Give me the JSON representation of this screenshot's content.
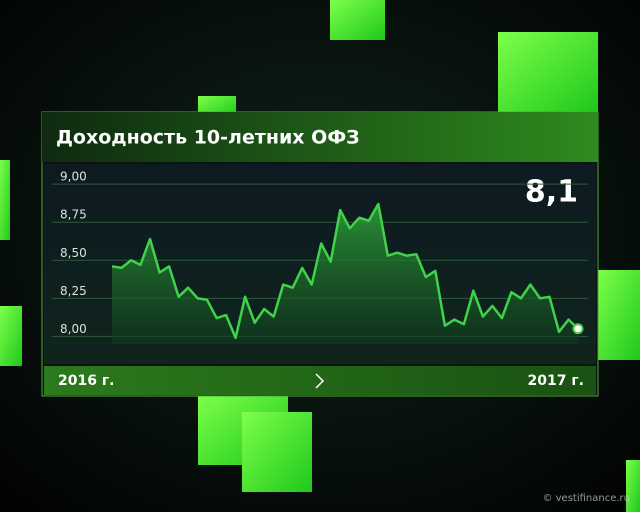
{
  "chart_data": {
    "type": "area",
    "title": "Доходность 10-летних ОФЗ",
    "current_value_label": "8,1",
    "x_labels": [
      "2016 г.",
      "2017 г."
    ],
    "values": [
      8.46,
      8.45,
      8.5,
      8.47,
      8.64,
      8.42,
      8.46,
      8.26,
      8.32,
      8.25,
      8.24,
      8.12,
      8.14,
      7.99,
      8.26,
      8.09,
      8.18,
      8.13,
      8.34,
      8.32,
      8.45,
      8.34,
      8.61,
      8.49,
      8.83,
      8.71,
      8.78,
      8.76,
      8.87,
      8.53,
      8.55,
      8.53,
      8.54,
      8.39,
      8.43,
      8.07,
      8.11,
      8.08,
      8.3,
      8.13,
      8.2,
      8.12,
      8.29,
      8.25,
      8.34,
      8.25,
      8.26,
      8.03,
      8.11,
      8.05
    ],
    "color": "#3fd24a",
    "ylim": [
      7.95,
      9.08
    ],
    "yticks": [
      {
        "value": 8,
        "label": "8,00"
      },
      {
        "value": 8.25,
        "label": "8,25"
      },
      {
        "value": 8.5,
        "label": "8,50"
      },
      {
        "value": 8.75,
        "label": "8,75"
      },
      {
        "value": 9,
        "label": "9,00"
      }
    ],
    "grid": true
  },
  "watermark": "© vestifinance.ru"
}
